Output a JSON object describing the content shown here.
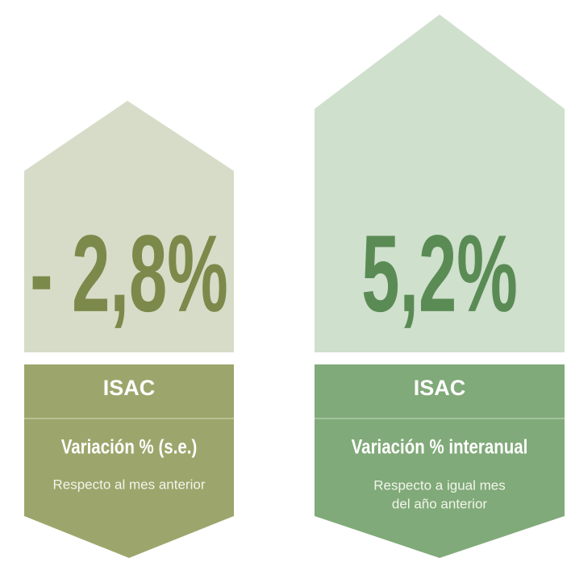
{
  "cards": [
    {
      "value": "- 2,8%",
      "label": "ISAC",
      "title": "Variación % (s.e.)",
      "subtitle": [
        "Respecto al mes anterior"
      ]
    },
    {
      "value": "5,2%",
      "label": "ISAC",
      "title": "Variación % interanual",
      "subtitle": [
        "Respecto a igual mes",
        "del año anterior"
      ]
    }
  ]
}
